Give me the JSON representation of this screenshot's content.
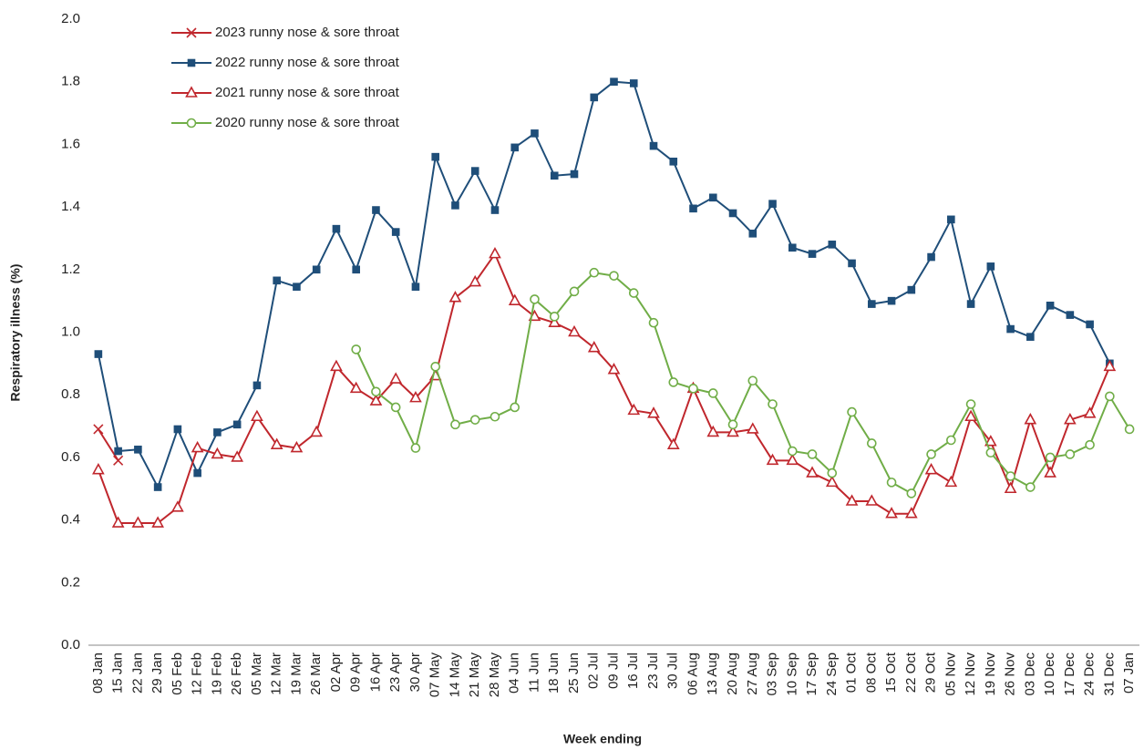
{
  "chart_data": {
    "type": "line",
    "xlabel": "Week ending",
    "ylabel": "Respiratory illness (%)",
    "categories": [
      "08 Jan",
      "15 Jan",
      "22 Jan",
      "29 Jan",
      "05 Feb",
      "12 Feb",
      "19 Feb",
      "26 Feb",
      "05 Mar",
      "12 Mar",
      "19 Mar",
      "26 Mar",
      "02 Apr",
      "09 Apr",
      "16 Apr",
      "23 Apr",
      "30 Apr",
      "07 May",
      "14 May",
      "21 May",
      "28 May",
      "04 Jun",
      "11 Jun",
      "18 Jun",
      "25 Jun",
      "02 Jul",
      "09 Jul",
      "16 Jul",
      "23 Jul",
      "30 Jul",
      "06 Aug",
      "13 Aug",
      "20 Aug",
      "27 Aug",
      "03 Sep",
      "10 Sep",
      "17 Sep",
      "24 Sep",
      "01 Oct",
      "08 Oct",
      "15 Oct",
      "22 Oct",
      "29 Oct",
      "05 Nov",
      "12 Nov",
      "19 Nov",
      "26 Nov",
      "03 Dec",
      "10 Dec",
      "17 Dec",
      "24 Dec",
      "31 Dec",
      "07 Jan"
    ],
    "series": [
      {
        "name": "2023 runny nose & sore throat",
        "color": "#c0272d",
        "marker": "x",
        "values": [
          0.69,
          0.59,
          null,
          null,
          null,
          null,
          null,
          null,
          null,
          null,
          null,
          null,
          null,
          null,
          null,
          null,
          null,
          null,
          null,
          null,
          null,
          null,
          null,
          null,
          null,
          null,
          null,
          null,
          null,
          null,
          null,
          null,
          null,
          null,
          null,
          null,
          null,
          null,
          null,
          null,
          null,
          null,
          null,
          null,
          null,
          null,
          null,
          null,
          null,
          null,
          null,
          null,
          null
        ]
      },
      {
        "name": "2022 runny nose & sore throat",
        "color": "#1f4e79",
        "marker": "square",
        "values": [
          0.93,
          0.62,
          0.625,
          0.505,
          0.69,
          0.55,
          0.68,
          0.705,
          0.83,
          1.165,
          1.145,
          1.2,
          1.33,
          1.2,
          1.39,
          1.32,
          1.145,
          1.56,
          1.405,
          1.515,
          1.39,
          1.59,
          1.635,
          1.5,
          1.505,
          1.75,
          1.8,
          1.795,
          1.595,
          1.545,
          1.395,
          1.43,
          1.38,
          1.315,
          1.41,
          1.27,
          1.25,
          1.28,
          1.22,
          1.09,
          1.1,
          1.135,
          1.24,
          1.36,
          1.09,
          1.21,
          1.01,
          0.985,
          1.085,
          1.055,
          1.025,
          0.9,
          null
        ]
      },
      {
        "name": "2021 runny nose & sore throat",
        "color": "#c0272d",
        "marker": "triangle",
        "values": [
          0.56,
          0.39,
          0.39,
          0.39,
          0.44,
          0.63,
          0.61,
          0.6,
          0.73,
          0.64,
          0.63,
          0.68,
          0.89,
          0.82,
          0.78,
          0.85,
          0.79,
          0.86,
          1.11,
          1.16,
          1.25,
          1.1,
          1.05,
          1.03,
          1.0,
          0.95,
          0.88,
          0.75,
          0.74,
          0.64,
          0.82,
          0.68,
          0.68,
          0.69,
          0.59,
          0.59,
          0.55,
          0.52,
          0.46,
          0.46,
          0.42,
          0.42,
          0.56,
          0.52,
          0.73,
          0.65,
          0.5,
          0.72,
          0.55,
          0.72,
          0.74,
          0.89,
          null
        ]
      },
      {
        "name": "2020 runny nose & sore throat",
        "color": "#70ad47",
        "marker": "circle",
        "values": [
          null,
          null,
          null,
          null,
          null,
          null,
          null,
          null,
          null,
          null,
          null,
          null,
          null,
          0.945,
          0.81,
          0.76,
          0.63,
          0.89,
          0.705,
          0.72,
          0.73,
          0.76,
          1.105,
          1.05,
          1.13,
          1.19,
          1.18,
          1.125,
          1.03,
          0.84,
          0.82,
          0.805,
          0.705,
          0.845,
          0.77,
          0.62,
          0.61,
          0.55,
          0.745,
          0.645,
          0.52,
          0.485,
          0.61,
          0.655,
          0.77,
          0.615,
          0.54,
          0.505,
          0.6,
          0.61,
          0.64,
          0.795,
          0.69
        ]
      }
    ],
    "ylim": [
      0,
      2.0
    ],
    "yticks": [
      {
        "value": 0,
        "label": "0.0"
      },
      0.2,
      0.4,
      0.6,
      0.8,
      {
        "value": 1,
        "label": "1.0"
      },
      1.2,
      1.4,
      1.6,
      1.8,
      {
        "value": 2,
        "label": "2.0"
      }
    ],
    "grid": false,
    "legend": "top-left"
  }
}
